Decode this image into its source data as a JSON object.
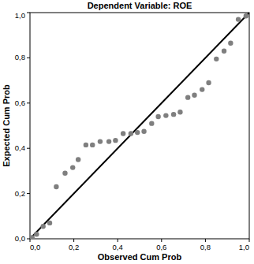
{
  "chart_data": {
    "type": "scatter",
    "title": "Dependent Variable: ROE",
    "x_label": "Observed Cum Prob",
    "y_label": "Expected Cum Prob",
    "x": [
      0.01,
      0.03,
      0.06,
      0.09,
      0.12,
      0.16,
      0.195,
      0.22,
      0.255,
      0.285,
      0.32,
      0.36,
      0.39,
      0.425,
      0.46,
      0.49,
      0.52,
      0.555,
      0.585,
      0.62,
      0.655,
      0.685,
      0.72,
      0.75,
      0.785,
      0.815,
      0.85,
      0.885,
      0.915,
      0.95,
      0.985
    ],
    "values": [
      0.005,
      0.02,
      0.055,
      0.07,
      0.23,
      0.29,
      0.315,
      0.35,
      0.415,
      0.415,
      0.43,
      0.43,
      0.435,
      0.465,
      0.465,
      0.47,
      0.475,
      0.51,
      0.54,
      0.545,
      0.55,
      0.56,
      0.625,
      0.635,
      0.66,
      0.69,
      0.795,
      0.83,
      0.865,
      0.97,
      0.985
    ],
    "color": "#7f7f7f",
    "marker": "circle",
    "grid": false,
    "xlim": [
      0,
      1
    ],
    "ylim": [
      0,
      1
    ],
    "xticks": [
      {
        "value": 0,
        "label": "0,0"
      },
      {
        "value": 0.2,
        "label": "0,2"
      },
      {
        "value": 0.4,
        "label": "0,4"
      },
      {
        "value": 0.6,
        "label": "0,6"
      },
      {
        "value": 0.8,
        "label": "0,8"
      },
      {
        "value": 1,
        "label": "1,0"
      }
    ],
    "yticks": [
      {
        "value": 0,
        "label": "0,0"
      },
      {
        "value": 0.2,
        "label": "0,2"
      },
      {
        "value": 0.4,
        "label": "0,4"
      },
      {
        "value": 0.6,
        "label": "0,6"
      },
      {
        "value": 0.8,
        "label": "0,8"
      },
      {
        "value": 1,
        "label": "1,0"
      }
    ]
  }
}
